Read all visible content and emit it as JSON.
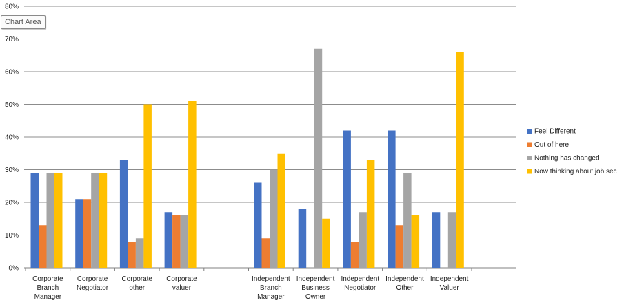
{
  "tooltip": {
    "label": "Chart Area"
  },
  "chart_data": {
    "type": "bar",
    "ylim": [
      0,
      0.8
    ],
    "y_ticks": [
      "0%",
      "10%",
      "20%",
      "30%",
      "40%",
      "50%",
      "60%",
      "70%",
      "80%"
    ],
    "grid": true,
    "legend_position": "right",
    "categories": [
      "Corporate Branch Manager",
      "Corporate Negotiator",
      "Corporate other",
      "Corporate valuer",
      "",
      "Independent Branch Manager",
      "Independent Business Owner",
      "Independent Negotiator",
      "Independent Other",
      "Independent Valuer"
    ],
    "category_label_lines": [
      [
        "Corporate",
        "Branch",
        "Manager"
      ],
      [
        "Corporate",
        "Negotiator"
      ],
      [
        "Corporate",
        "other"
      ],
      [
        "Corporate",
        "valuer"
      ],
      [],
      [
        "Independent",
        "Branch",
        "Manager"
      ],
      [
        "Independent",
        "Business",
        "Owner"
      ],
      [
        "Independent",
        "Negotiator"
      ],
      [
        "Independent",
        "Other"
      ],
      [
        "Independent",
        "Valuer"
      ]
    ],
    "series": [
      {
        "name": "Feel Different",
        "color": "#4472C4",
        "values": [
          0.29,
          0.21,
          0.33,
          0.17,
          null,
          0.26,
          0.18,
          0.42,
          0.42,
          0.17
        ]
      },
      {
        "name": "Out of here",
        "color": "#ED7D31",
        "values": [
          0.13,
          0.21,
          0.08,
          0.16,
          null,
          0.09,
          0,
          0.08,
          0.13,
          0
        ]
      },
      {
        "name": "Nothing has changed",
        "color": "#A5A5A5",
        "values": [
          0.29,
          0.29,
          0.09,
          0.16,
          null,
          0.3,
          0.67,
          0.17,
          0.29,
          0.17
        ]
      },
      {
        "name": "Now thinking about job sec",
        "color": "#FFC000",
        "values": [
          0.29,
          0.29,
          0.5,
          0.51,
          null,
          0.35,
          0.15,
          0.33,
          0.16,
          0.66
        ]
      }
    ]
  }
}
